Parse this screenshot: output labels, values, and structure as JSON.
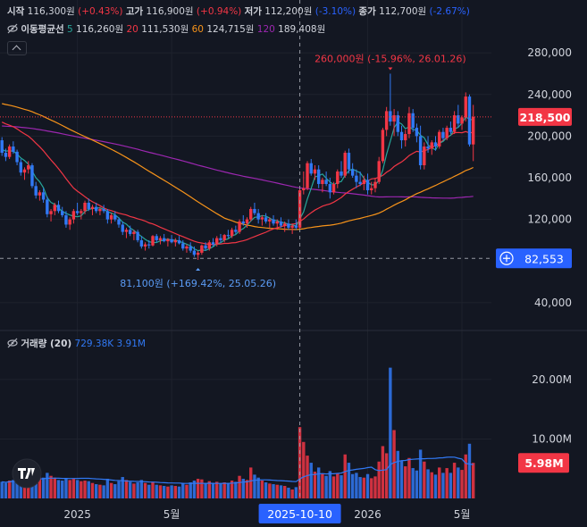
{
  "header": {
    "open_label": "시작",
    "open_value": "116,300원",
    "open_change": "(+0.43%)",
    "high_label": "고가",
    "high_value": "116,900원",
    "high_change": "(+0.94%)",
    "low_label": "저가",
    "low_value": "112,200원",
    "low_change": "(-3.10%)",
    "close_label": "종가",
    "close_value": "112,700원",
    "close_change": "(-2.67%)"
  },
  "ma_legend": {
    "label": "이동평균선",
    "p5": "5",
    "v5": "116,260원",
    "p20": "20",
    "v20": "111,530원",
    "p60": "60",
    "v60": "124,715원",
    "p120": "120",
    "v120": "189,408원"
  },
  "volume_legend": {
    "label": "거래량 (20)",
    "v1": "729.38K",
    "v2": "3.91M"
  },
  "colors": {
    "up": "#f23645",
    "down": "#3179f5",
    "ma5": "#26a69a",
    "ma20": "#f23645",
    "ma60": "#f7931a",
    "ma120": "#9c27b0",
    "bg": "#131722"
  },
  "chart_data": {
    "type": "candlestick",
    "price_ticks": [
      "280,000",
      "240,000",
      "200,000",
      "160,000",
      "120,000",
      "40,000"
    ],
    "price_tick_values": [
      280000,
      240000,
      200000,
      160000,
      120000,
      40000
    ],
    "price_range": [
      15000,
      305000
    ],
    "volume_ticks": [
      "20.00M",
      "10.00M"
    ],
    "volume_tick_values": [
      20000000,
      10000000
    ],
    "volume_range": [
      0,
      26000000
    ],
    "x_ticks": [
      "2025",
      "5월",
      "2026",
      "5월"
    ],
    "x_tick_index": [
      20,
      45,
      97,
      122
    ],
    "crosshair": {
      "index": 79,
      "date_label": "2025-10-10",
      "price": 82553,
      "price_label": "82,553"
    },
    "last_price": {
      "value": 218500,
      "label": "218,500"
    },
    "last_volume": {
      "value": 5980000,
      "label": "5.98M"
    },
    "high_annotation": {
      "index": 103,
      "price": 260000,
      "label": "260,000원 (-15.96%, 26.01.26)"
    },
    "low_annotation": {
      "index": 52,
      "price": 81100,
      "label": "81,100원 (+169.42%, 25.05.26)"
    },
    "candles": [
      [
        196000,
        199000,
        181000,
        184000,
        2800000
      ],
      [
        184000,
        188000,
        176000,
        180000,
        2600000
      ],
      [
        180000,
        192000,
        178000,
        190000,
        3000000
      ],
      [
        190000,
        195000,
        183000,
        185000,
        3100000
      ],
      [
        185000,
        187000,
        172000,
        175000,
        3400000
      ],
      [
        175000,
        178000,
        162000,
        165000,
        3300000
      ],
      [
        165000,
        170000,
        158000,
        168000,
        2900000
      ],
      [
        168000,
        176000,
        164000,
        172000,
        3200000
      ],
      [
        172000,
        174000,
        150000,
        152000,
        4200000
      ],
      [
        152000,
        156000,
        140000,
        143000,
        4000000
      ],
      [
        143000,
        148000,
        138000,
        146000,
        3600000
      ],
      [
        146000,
        150000,
        136000,
        139000,
        3500000
      ],
      [
        139000,
        142000,
        122000,
        125000,
        4300000
      ],
      [
        125000,
        130000,
        118000,
        128000,
        3800000
      ],
      [
        128000,
        136000,
        124000,
        134000,
        3500000
      ],
      [
        134000,
        138000,
        126000,
        128000,
        3100000
      ],
      [
        128000,
        132000,
        122000,
        124000,
        3000000
      ],
      [
        124000,
        128000,
        112000,
        115000,
        3400000
      ],
      [
        115000,
        122000,
        110000,
        120000,
        3100000
      ],
      [
        120000,
        130000,
        116000,
        128000,
        3300000
      ],
      [
        128000,
        136000,
        124000,
        126000,
        3100000
      ],
      [
        126000,
        130000,
        120000,
        128000,
        2900000
      ],
      [
        128000,
        138000,
        125000,
        136000,
        3000000
      ],
      [
        136000,
        140000,
        128000,
        130000,
        2900000
      ],
      [
        130000,
        134000,
        124000,
        132000,
        2600000
      ],
      [
        132000,
        136000,
        126000,
        128000,
        2400000
      ],
      [
        128000,
        132000,
        124000,
        130000,
        2300000
      ],
      [
        130000,
        134000,
        126000,
        128000,
        2200000
      ],
      [
        128000,
        130000,
        116000,
        120000,
        3300000
      ],
      [
        120000,
        126000,
        116000,
        124000,
        2600000
      ],
      [
        124000,
        128000,
        118000,
        120000,
        2400000
      ],
      [
        120000,
        122000,
        112000,
        115000,
        2900000
      ],
      [
        115000,
        118000,
        105000,
        108000,
        3600000
      ],
      [
        108000,
        112000,
        102000,
        110000,
        3100000
      ],
      [
        110000,
        114000,
        104000,
        106000,
        2800000
      ],
      [
        106000,
        110000,
        100000,
        108000,
        2500000
      ],
      [
        108000,
        110000,
        98000,
        100000,
        2700000
      ],
      [
        100000,
        104000,
        92000,
        94000,
        3100000
      ],
      [
        94000,
        98000,
        90000,
        96000,
        2600000
      ],
      [
        96000,
        100000,
        92000,
        95000,
        2300000
      ],
      [
        95000,
        105000,
        94000,
        104000,
        2800000
      ],
      [
        104000,
        106000,
        98000,
        100000,
        2300000
      ],
      [
        100000,
        104000,
        96000,
        102000,
        2200000
      ],
      [
        102000,
        106000,
        98000,
        99000,
        2100000
      ],
      [
        99000,
        102000,
        94000,
        101000,
        2000000
      ],
      [
        101000,
        105000,
        97000,
        98000,
        2200000
      ],
      [
        98000,
        102000,
        94000,
        100000,
        2100000
      ],
      [
        100000,
        104000,
        96000,
        97000,
        2000000
      ],
      [
        97000,
        100000,
        90000,
        92000,
        2600000
      ],
      [
        92000,
        96000,
        88000,
        94000,
        2300000
      ],
      [
        94000,
        98000,
        88000,
        90000,
        2700000
      ],
      [
        90000,
        94000,
        84000,
        86000,
        3000000
      ],
      [
        86000,
        90000,
        81100,
        88000,
        3300000
      ],
      [
        88000,
        96000,
        86000,
        95000,
        3200000
      ],
      [
        95000,
        98000,
        90000,
        92000,
        2600000
      ],
      [
        92000,
        100000,
        90000,
        98000,
        2900000
      ],
      [
        98000,
        102000,
        94000,
        96000,
        2500000
      ],
      [
        96000,
        104000,
        94000,
        102000,
        2800000
      ],
      [
        102000,
        106000,
        98000,
        100000,
        2500000
      ],
      [
        100000,
        106000,
        98000,
        105000,
        2700000
      ],
      [
        105000,
        110000,
        102000,
        104000,
        2600000
      ],
      [
        104000,
        112000,
        102000,
        110000,
        3000000
      ],
      [
        110000,
        114000,
        106000,
        108000,
        2800000
      ],
      [
        108000,
        120000,
        106000,
        118000,
        3800000
      ],
      [
        118000,
        124000,
        114000,
        116000,
        3300000
      ],
      [
        116000,
        122000,
        112000,
        120000,
        3100000
      ],
      [
        120000,
        132000,
        118000,
        130000,
        5200000
      ],
      [
        130000,
        136000,
        124000,
        126000,
        4000000
      ],
      [
        126000,
        130000,
        116000,
        120000,
        3500000
      ],
      [
        120000,
        124000,
        114000,
        122000,
        3000000
      ],
      [
        122000,
        126000,
        116000,
        118000,
        2700000
      ],
      [
        118000,
        122000,
        112000,
        120000,
        2500000
      ],
      [
        120000,
        124000,
        114000,
        116000,
        2400000
      ],
      [
        116000,
        120000,
        110000,
        118000,
        2300000
      ],
      [
        118000,
        122000,
        112000,
        114000,
        2200000
      ],
      [
        114000,
        118000,
        108000,
        116000,
        2100000
      ],
      [
        116000,
        120000,
        110000,
        112000,
        1800000
      ],
      [
        112000,
        116000,
        106000,
        114000,
        1500000
      ],
      [
        114000,
        120000,
        110000,
        112000,
        1900000
      ],
      [
        112000,
        150000,
        110000,
        148000,
        12000000
      ],
      [
        148000,
        166000,
        144000,
        150000,
        9500000
      ],
      [
        150000,
        176000,
        148000,
        174000,
        7200000
      ],
      [
        174000,
        178000,
        162000,
        164000,
        6000000
      ],
      [
        164000,
        172000,
        158000,
        168000,
        4500000
      ],
      [
        168000,
        172000,
        150000,
        154000,
        5200000
      ],
      [
        154000,
        160000,
        146000,
        158000,
        4200000
      ],
      [
        158000,
        166000,
        152000,
        154000,
        3800000
      ],
      [
        154000,
        160000,
        140000,
        146000,
        4600000
      ],
      [
        146000,
        156000,
        144000,
        154000,
        3700000
      ],
      [
        154000,
        168000,
        150000,
        166000,
        4200000
      ],
      [
        166000,
        176000,
        160000,
        162000,
        3900000
      ],
      [
        162000,
        186000,
        160000,
        184000,
        7400000
      ],
      [
        184000,
        188000,
        164000,
        168000,
        6000000
      ],
      [
        168000,
        174000,
        160000,
        162000,
        4100000
      ],
      [
        162000,
        168000,
        150000,
        156000,
        4300000
      ],
      [
        156000,
        166000,
        152000,
        154000,
        3600000
      ],
      [
        154000,
        162000,
        148000,
        158000,
        3500000
      ],
      [
        158000,
        164000,
        144000,
        148000,
        4100000
      ],
      [
        148000,
        156000,
        144000,
        150000,
        3400000
      ],
      [
        150000,
        160000,
        146000,
        156000,
        3700000
      ],
      [
        156000,
        180000,
        154000,
        176000,
        6200000
      ],
      [
        176000,
        208000,
        174000,
        206000,
        8800000
      ],
      [
        206000,
        228000,
        200000,
        224000,
        7600000
      ],
      [
        224000,
        260000,
        210000,
        214000,
        22000000
      ],
      [
        214000,
        226000,
        200000,
        220000,
        11500000
      ],
      [
        220000,
        224000,
        200000,
        204000,
        8000000
      ],
      [
        204000,
        210000,
        188000,
        196000,
        6400000
      ],
      [
        196000,
        206000,
        190000,
        202000,
        5400000
      ],
      [
        202000,
        228000,
        198000,
        222000,
        6800000
      ],
      [
        222000,
        226000,
        204000,
        208000,
        5100000
      ],
      [
        208000,
        212000,
        194000,
        200000,
        4700000
      ],
      [
        200000,
        210000,
        168000,
        172000,
        8200000
      ],
      [
        172000,
        194000,
        168000,
        190000,
        6200000
      ],
      [
        190000,
        200000,
        184000,
        188000,
        4900000
      ],
      [
        188000,
        196000,
        182000,
        194000,
        4400000
      ],
      [
        194000,
        200000,
        186000,
        190000,
        4000000
      ],
      [
        190000,
        206000,
        188000,
        204000,
        5200000
      ],
      [
        204000,
        208000,
        196000,
        198000,
        4300000
      ],
      [
        198000,
        210000,
        196000,
        208000,
        5100000
      ],
      [
        208000,
        214000,
        202000,
        204000,
        4300000
      ],
      [
        204000,
        224000,
        202000,
        220000,
        6000000
      ],
      [
        220000,
        230000,
        208000,
        212000,
        5200000
      ],
      [
        212000,
        220000,
        206000,
        218000,
        4800000
      ],
      [
        218000,
        242000,
        214000,
        238000,
        7400000
      ],
      [
        238000,
        240000,
        190000,
        192000,
        9200000
      ],
      [
        192000,
        230000,
        176000,
        218500,
        5980000
      ]
    ]
  }
}
